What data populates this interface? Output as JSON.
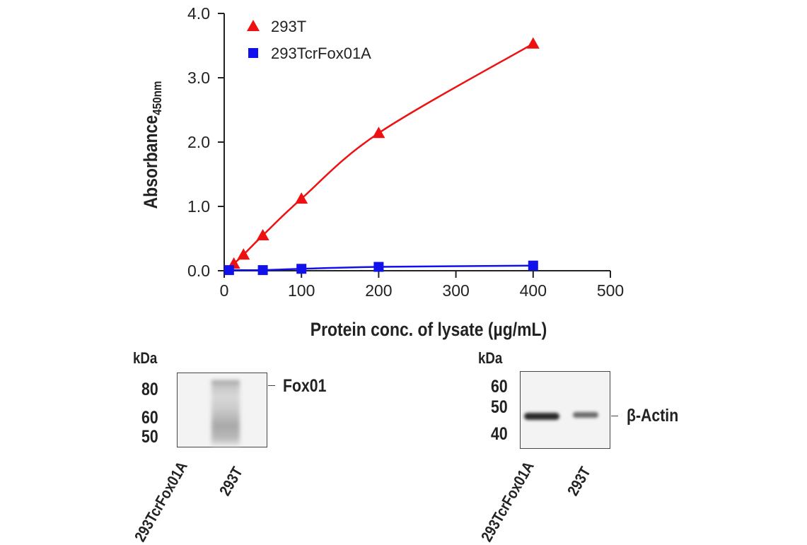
{
  "chart_data": {
    "type": "line",
    "xlabel": "Protein conc. of lysate (µg/mL)",
    "ylabel": "Absorbance",
    "ylabel_sub": "450nm",
    "xlim": [
      0,
      500
    ],
    "ylim": [
      0,
      4.0
    ],
    "xticks": [
      "0",
      "100",
      "200",
      "300",
      "400",
      "500"
    ],
    "yticks": [
      "0.0",
      "1.0",
      "2.0",
      "3.0",
      "4.0"
    ],
    "grid": false,
    "legend_position": "top-left",
    "series": [
      {
        "name": "293T",
        "marker": "triangle",
        "color": "#ee1111",
        "x": [
          12.5,
          25,
          50,
          100,
          200,
          400
        ],
        "y": [
          0.11,
          0.25,
          0.55,
          1.12,
          2.14,
          3.53
        ]
      },
      {
        "name": "293TcrFox01A",
        "marker": "square",
        "color": "#1111ee",
        "x": [
          6.25,
          50,
          100,
          200,
          400
        ],
        "y": [
          0.01,
          0.01,
          0.03,
          0.06,
          0.08
        ]
      }
    ]
  },
  "blots": [
    {
      "unit": "kDa",
      "markers": [
        "80",
        "60",
        "50"
      ],
      "target": "Fox01",
      "lanes": [
        "293TcrFox01A",
        "293T"
      ]
    },
    {
      "unit": "kDa",
      "markers": [
        "60",
        "50",
        "40"
      ],
      "target": "β-Actin",
      "lanes": [
        "293TcrFox01A",
        "293T"
      ]
    }
  ]
}
